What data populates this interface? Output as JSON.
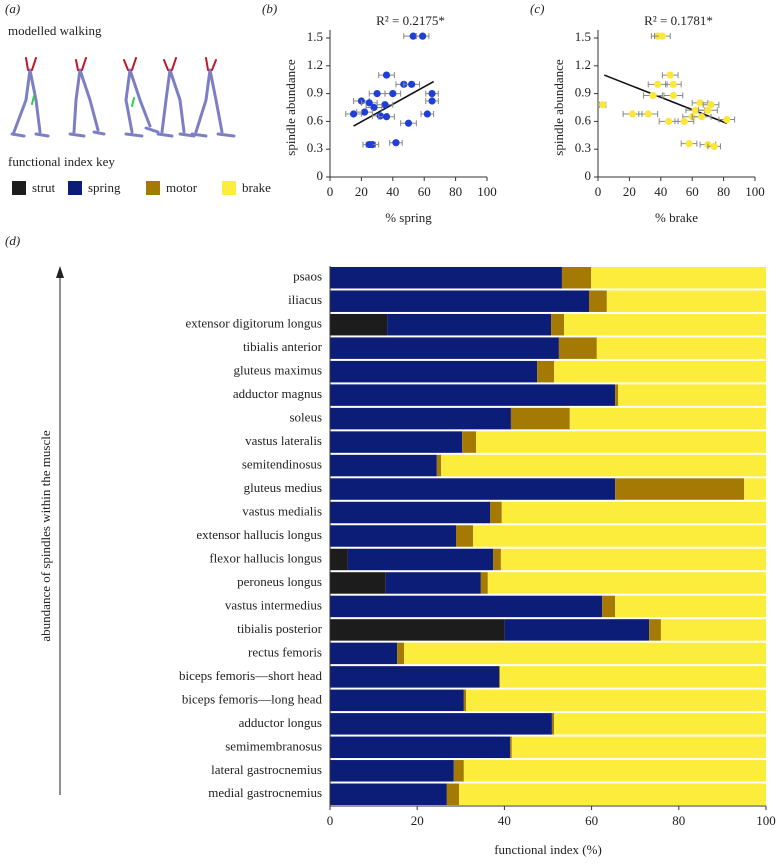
{
  "panel_a": {
    "label": "(a)",
    "title": "modelled walking",
    "key_title": "functional index key"
  },
  "chart_data": [
    {
      "type": "scatter",
      "panel_label": "(b)",
      "title": "R² = 0.2175*",
      "x_label": "% spring",
      "y_label": "spindle abundance",
      "color": "#1f3fd6",
      "x": [
        53,
        59,
        36,
        47,
        52,
        30,
        40,
        65,
        65,
        20,
        25,
        35,
        28,
        22,
        15,
        32,
        36,
        62,
        50,
        27,
        25,
        42
      ],
      "y": [
        1.52,
        1.52,
        1.1,
        1.0,
        1.0,
        0.9,
        0.9,
        0.9,
        0.82,
        0.82,
        0.8,
        0.78,
        0.75,
        0.7,
        0.68,
        0.66,
        0.65,
        0.68,
        0.58,
        0.35,
        0.35,
        0.37
      ],
      "x_error": [
        6,
        4,
        5,
        5,
        5,
        5,
        5,
        4,
        4,
        5,
        5,
        5,
        5,
        5,
        5,
        5,
        5,
        4,
        5,
        4,
        4,
        4
      ],
      "trend_line": {
        "x": [
          15,
          66
        ],
        "y": [
          0.55,
          1.03
        ]
      },
      "xlim": [
        0,
        100
      ],
      "xticks": [
        0,
        20,
        40,
        60,
        80,
        100
      ],
      "ylim": [
        0,
        1.5
      ],
      "yticks": [
        0,
        0.3,
        0.6,
        0.9,
        1.2,
        1.5
      ]
    },
    {
      "type": "scatter",
      "panel_label": "(c)",
      "title": "R² = 0.1781*",
      "x_label": "% brake",
      "y_label": "spindle abundance",
      "color": "#fbe63a",
      "x": [
        38,
        41,
        46,
        38,
        48,
        35,
        48,
        65,
        72,
        3,
        62,
        70,
        22,
        32,
        60,
        66,
        82,
        45,
        55,
        58,
        70,
        74
      ],
      "y": [
        1.52,
        1.52,
        1.1,
        1.0,
        1.0,
        0.88,
        0.88,
        0.8,
        0.78,
        0.78,
        0.72,
        0.72,
        0.68,
        0.68,
        0.65,
        0.65,
        0.62,
        0.6,
        0.6,
        0.36,
        0.35,
        0.33
      ],
      "x_error": [
        4,
        5,
        5,
        6,
        5,
        6,
        6,
        5,
        5,
        2,
        6,
        6,
        6,
        6,
        6,
        6,
        5,
        6,
        6,
        5,
        5,
        4
      ],
      "trend_line": {
        "x": [
          4,
          82
        ],
        "y": [
          1.1,
          0.58
        ]
      },
      "xlim": [
        0,
        100
      ],
      "xticks": [
        0,
        20,
        40,
        60,
        80,
        100
      ],
      "ylim": [
        0,
        1.5
      ],
      "yticks": [
        0,
        0.3,
        0.6,
        0.9,
        1.2,
        1.5
      ]
    },
    {
      "type": "stacked_hbar",
      "panel_label": "(d)",
      "x_label": "functional index (%)",
      "y_label": "abundance of spindles within the muscle",
      "categories": [
        "psaos",
        "iliacus",
        "extensor digitorum longus",
        "tibialis anterior",
        "gluteus maximus",
        "adductor magnus",
        "soleus",
        "vastus lateralis",
        "semitendinosus",
        "gluteus medius",
        "vastus medialis",
        "extensor hallucis longus",
        "flexor hallucis longus",
        "peroneus longus",
        "vastus intermedius",
        "tibialis posterior",
        "rectus femoris",
        "biceps femoris—short head",
        "biceps femoris—long head",
        "adductor longus",
        "semimembranosus",
        "lateral gastrocnemius",
        "medial gastrocnemius"
      ],
      "series": [
        {
          "name": "strut",
          "color": "#1c1c1c",
          "values": [
            0,
            0,
            13.1,
            0,
            0,
            0,
            0,
            0,
            0,
            0,
            0,
            0,
            4.1,
            12.8,
            0,
            40.1,
            0,
            0,
            0,
            0,
            0,
            0,
            0
          ]
        },
        {
          "name": "spring",
          "color": "#0c1d78",
          "values": [
            53.2,
            59.4,
            37.6,
            52.5,
            47.5,
            65.4,
            41.5,
            30.3,
            24.5,
            65.4,
            36.7,
            28.9,
            33.3,
            21.8,
            62.4,
            33.1,
            15.4,
            38.8,
            30.7,
            50.9,
            41.3,
            28.4,
            26.8
          ]
        },
        {
          "name": "motor",
          "color": "#a47a05",
          "values": [
            6.7,
            4.1,
            3,
            8.7,
            3.9,
            0.7,
            13.5,
            3.2,
            1,
            29.6,
            2.7,
            3.9,
            1.8,
            1.6,
            3,
            2.7,
            1.6,
            0.2,
            0.5,
            0.5,
            0.4,
            2.3,
            2.8
          ]
        },
        {
          "name": "brake",
          "color": "#fcec3c",
          "values": [
            40.1,
            36.5,
            46.3,
            38.8,
            48.6,
            33.9,
            45,
            66.5,
            74.5,
            5,
            60.6,
            67.2,
            60.8,
            63.8,
            34.6,
            24.1,
            83,
            61,
            68.8,
            48.6,
            58.3,
            69.3,
            70.4
          ]
        }
      ],
      "xlim": [
        0,
        100
      ],
      "xticks": [
        0,
        20,
        40,
        60,
        80,
        100
      ]
    }
  ]
}
